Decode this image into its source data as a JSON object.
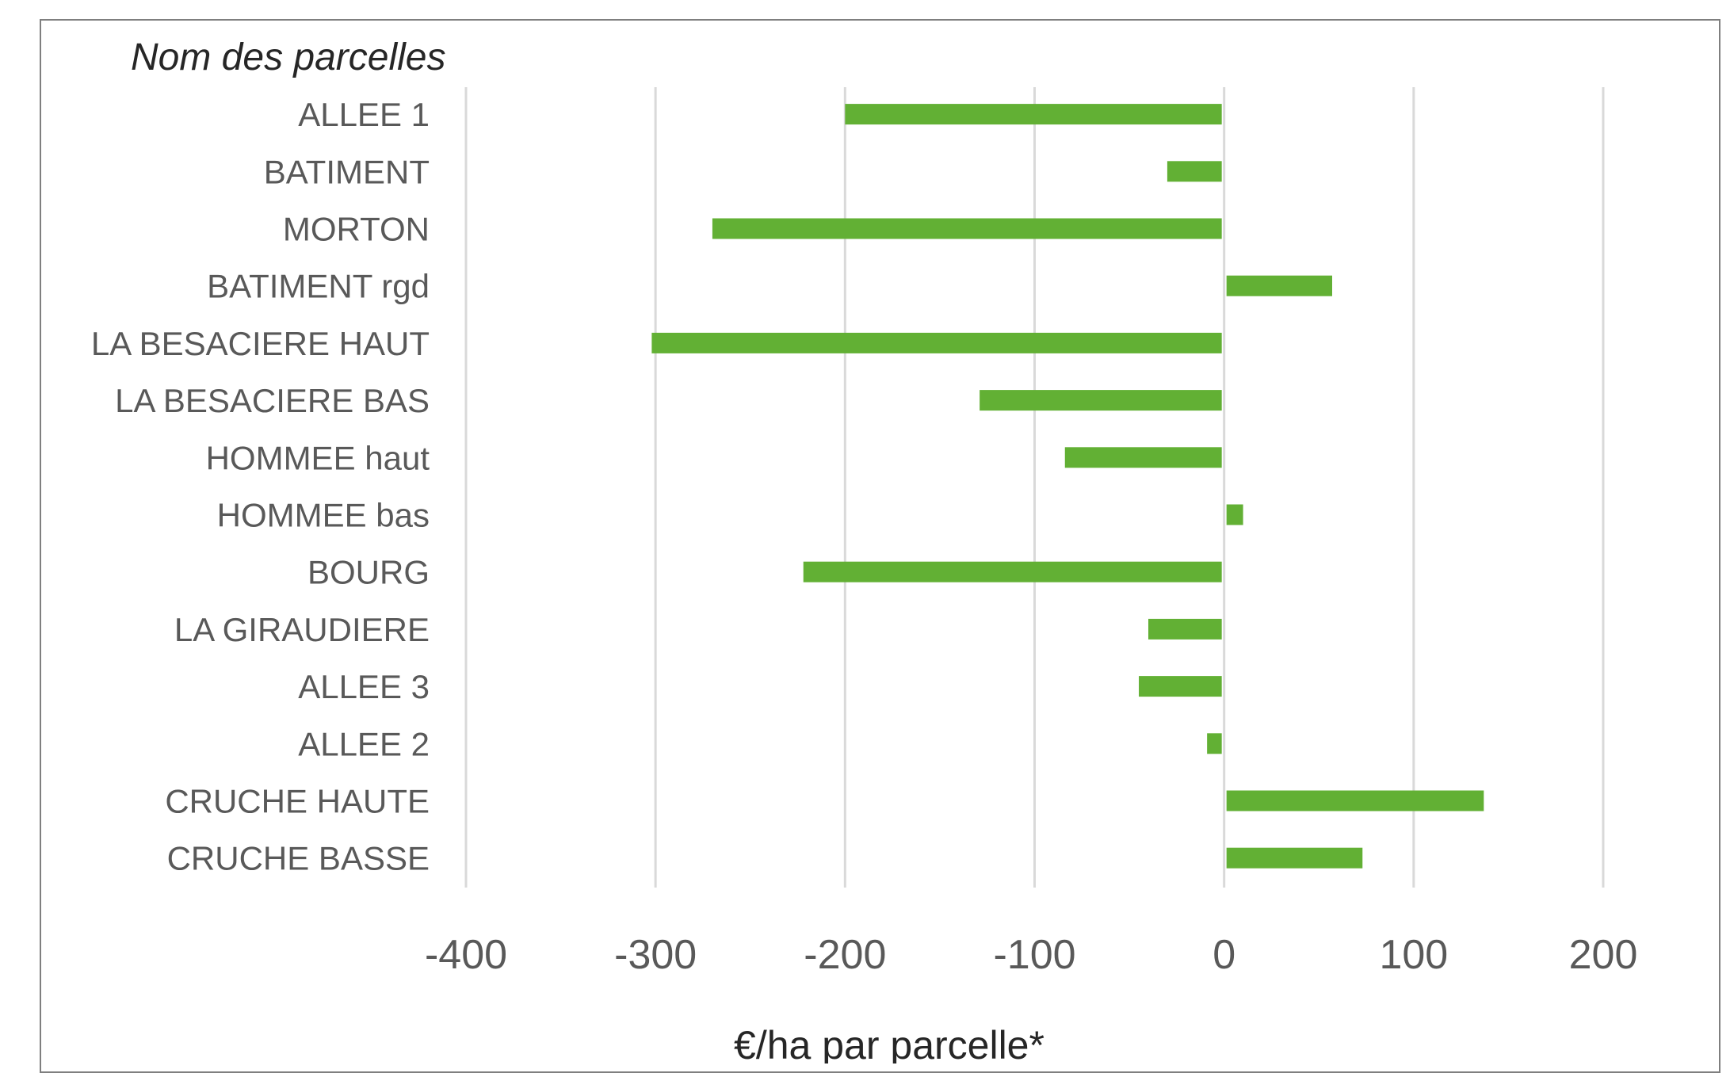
{
  "chart_data": {
    "type": "bar",
    "orientation": "horizontal",
    "ylabel": "Nom des parcelles",
    "xlabel": "€/ha par parcelle*",
    "xlim": [
      -400,
      200
    ],
    "xticks": [
      "-400",
      "-300",
      "-200",
      "-100",
      "0",
      "100",
      "200"
    ],
    "grid": true,
    "bar_color": "#62B034",
    "categories": [
      "ALLEE 1",
      "BATIMENT",
      "MORTON",
      "BATIMENT rgd",
      "LA BESACIERE HAUT",
      "LA BESACIERE BAS",
      "HOMMEE haut",
      "HOMMEE bas",
      "BOURG",
      "LA GIRAUDIERE",
      "ALLEE 3",
      "ALLEE 2",
      "CRUCHE HAUTE",
      "CRUCHE BASSE"
    ],
    "values": [
      -200,
      -30,
      -270,
      57,
      -302,
      -129,
      -84,
      10,
      -222,
      -40,
      -45,
      -9,
      137,
      73
    ]
  }
}
